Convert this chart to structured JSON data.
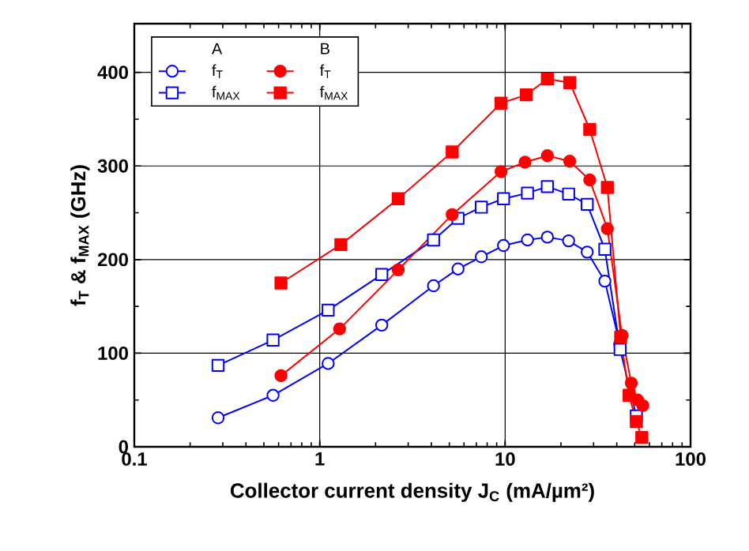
{
  "chart_data": {
    "type": "line",
    "xlabel": "Collector current density J$_{C}$ (mA/µm²)",
    "ylabel": "f$_{T}$ & f$_{MAX}$ (GHz)",
    "log": "x",
    "xlim": [
      0.1,
      100
    ],
    "xticks": [
      0.1,
      1,
      10,
      100
    ],
    "ylim": [
      0,
      452
    ],
    "yticks": [
      0,
      100,
      200,
      300,
      400
    ],
    "grid": true,
    "legend": "top left",
    "annotations": [
      "A",
      "B"
    ],
    "series": [
      {
        "name": "f$_{T}$",
        "color": "#0000ff",
        "marker": "circle",
        "x": [
          0.283,
          0.56,
          1.11,
          2.16,
          4.11,
          5.57,
          7.44,
          9.8,
          13.2,
          16.9,
          22.0,
          27.7,
          34.5,
          41.5
        ],
        "values": [
          31,
          55,
          89,
          130,
          172,
          190,
          203,
          215,
          221,
          224,
          220,
          208,
          177,
          110
        ]
      },
      {
        "name": "f$_{MAX}$",
        "color": "#0000ff",
        "marker": "square",
        "x": [
          0.283,
          0.56,
          1.11,
          2.16,
          4.11,
          5.57,
          7.44,
          9.8,
          13.2,
          16.9,
          22.0,
          27.7,
          34.5,
          41.7,
          51
        ],
        "values": [
          87,
          114,
          146,
          184,
          221,
          244,
          256,
          265,
          271,
          278,
          270,
          259,
          211,
          104,
          33
        ]
      },
      {
        "name": "f$_{T}$",
        "color": "#ff0000",
        "marker": "circle",
        "x": [
          0.618,
          1.28,
          2.65,
          5.18,
          9.5,
          12.8,
          16.9,
          22.3,
          28.6,
          35.6,
          42.7,
          47.9,
          51.8,
          55.3
        ],
        "values": [
          76,
          126,
          189,
          248,
          294,
          304,
          311,
          305,
          285,
          233,
          119,
          68,
          50,
          44
        ]
      },
      {
        "name": "f$_{MAX}$",
        "color": "#ff0000",
        "marker": "square",
        "x": [
          0.618,
          1.3,
          2.65,
          5.18,
          9.5,
          13.0,
          16.9,
          22.3,
          28.6,
          35.6,
          42.0,
          46.6,
          51,
          54.6
        ],
        "values": [
          175,
          216,
          265,
          315,
          367,
          376,
          393,
          389,
          339,
          277,
          117,
          55,
          27,
          10
        ]
      }
    ]
  }
}
